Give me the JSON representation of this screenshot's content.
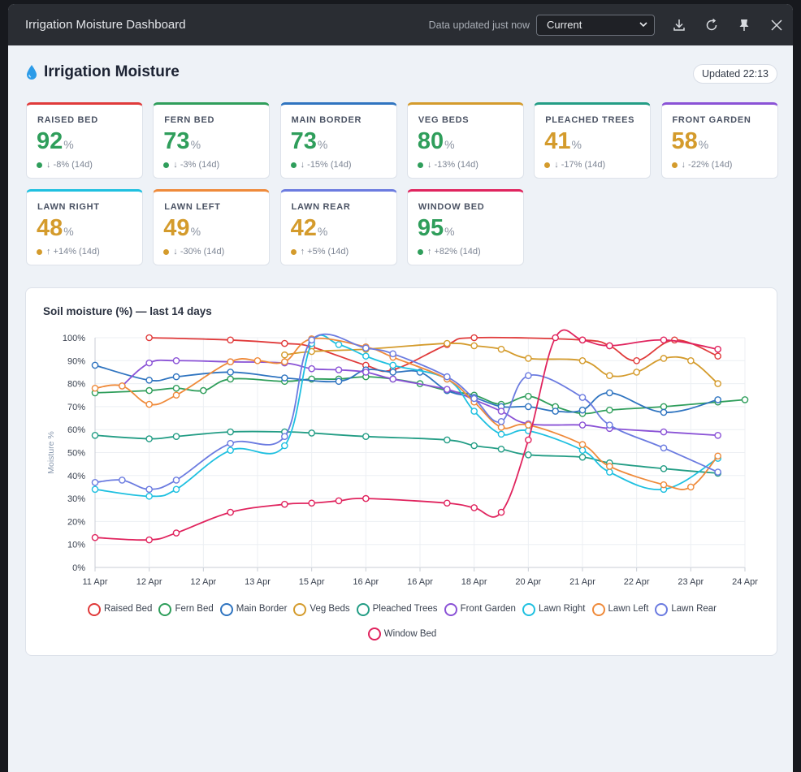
{
  "window": {
    "title": "Irrigation Moisture Dashboard",
    "status": "Data updated just now",
    "select_value": "Current",
    "icons": [
      "download-icon",
      "refresh-icon",
      "pin-icon",
      "close-icon"
    ]
  },
  "header": {
    "title": "Irrigation Moisture",
    "updated": "Updated 22:13"
  },
  "cards": [
    {
      "name": "RAISED BED",
      "value": "92",
      "unit": "%",
      "trend": "↓ -8% (14d)",
      "color": "#e03a3a",
      "status": "#2f9e5b"
    },
    {
      "name": "FERN BED",
      "value": "73",
      "unit": "%",
      "trend": "↓ -3% (14d)",
      "color": "#2f9e5b",
      "status": "#2f9e5b"
    },
    {
      "name": "MAIN BORDER",
      "value": "73",
      "unit": "%",
      "trend": "↓ -15% (14d)",
      "color": "#2f74c0",
      "status": "#2f9e5b"
    },
    {
      "name": "VEG BEDS",
      "value": "80",
      "unit": "%",
      "trend": "↓ -13% (14d)",
      "color": "#d49b2c",
      "status": "#2f9e5b"
    },
    {
      "name": "PLEACHED TREES",
      "value": "41",
      "unit": "%",
      "trend": "↓ -17% (14d)",
      "color": "#239d85",
      "status": "#d49b2c"
    },
    {
      "name": "FRONT GARDEN",
      "value": "58",
      "unit": "%",
      "trend": "↓ -22% (14d)",
      "color": "#8a52d6",
      "status": "#d49b2c"
    },
    {
      "name": "LAWN RIGHT",
      "value": "48",
      "unit": "%",
      "trend": "↑ +14% (14d)",
      "color": "#1fc0e0",
      "status": "#d49b2c"
    },
    {
      "name": "LAWN LEFT",
      "value": "49",
      "unit": "%",
      "trend": "↓ -30% (14d)",
      "color": "#ef8a3a",
      "status": "#d49b2c"
    },
    {
      "name": "LAWN REAR",
      "value": "42",
      "unit": "%",
      "trend": "↑ +5% (14d)",
      "color": "#6b7be0",
      "status": "#d49b2c"
    },
    {
      "name": "WINDOW BED",
      "value": "95",
      "unit": "%",
      "trend": "↑ +82% (14d)",
      "color": "#e0245e",
      "status": "#2f9e5b"
    }
  ],
  "chart_data": {
    "type": "line",
    "title": "Soil moisture (%) — last 14 days",
    "ylabel": "Moisture %",
    "xlabel": "",
    "ylim": [
      0,
      100
    ],
    "yticks": [
      "0%",
      "10%",
      "20%",
      "30%",
      "40%",
      "50%",
      "60%",
      "70%",
      "80%",
      "90%",
      "100%"
    ],
    "xlim": [
      0,
      12
    ],
    "xticks": [
      {
        "x": 0,
        "label": "11 Apr"
      },
      {
        "x": 1,
        "label": "12 Apr"
      },
      {
        "x": 2,
        "label": "12 Apr"
      },
      {
        "x": 3,
        "label": "13 Apr"
      },
      {
        "x": 4,
        "label": "15 Apr"
      },
      {
        "x": 5,
        "label": "16 Apr"
      },
      {
        "x": 6,
        "label": "16 Apr"
      },
      {
        "x": 7,
        "label": "18 Apr"
      },
      {
        "x": 8,
        "label": "20 Apr"
      },
      {
        "x": 9,
        "label": "21 Apr"
      },
      {
        "x": 10,
        "label": "22 Apr"
      },
      {
        "x": 11,
        "label": "23 Apr"
      },
      {
        "x": 12,
        "label": "24 Apr"
      }
    ],
    "grid": true,
    "legend": "bottom",
    "series": [
      {
        "name": "Raised Bed",
        "color": "#e03a3a",
        "points": [
          [
            1,
            100
          ],
          [
            2.5,
            99
          ],
          [
            3.5,
            97.5
          ],
          [
            4,
            96
          ],
          [
            5,
            88
          ],
          [
            5.5,
            86
          ],
          [
            6.5,
            97
          ],
          [
            7,
            100
          ],
          [
            9,
            99
          ],
          [
            9.5,
            96.5
          ],
          [
            10,
            90
          ],
          [
            10.7,
            99
          ],
          [
            11.5,
            92
          ]
        ]
      },
      {
        "name": "Fern Bed",
        "color": "#2f9e5b",
        "points": [
          [
            0,
            76
          ],
          [
            1,
            77
          ],
          [
            1.5,
            78
          ],
          [
            2,
            77
          ],
          [
            2.5,
            82
          ],
          [
            3.5,
            81
          ],
          [
            4,
            82
          ],
          [
            4.5,
            82
          ],
          [
            5,
            83
          ],
          [
            5.5,
            82
          ],
          [
            6,
            80
          ],
          [
            6.5,
            77
          ],
          [
            7,
            75
          ],
          [
            7.5,
            71
          ],
          [
            8,
            74.5
          ],
          [
            8.5,
            70
          ],
          [
            9,
            67
          ],
          [
            9.5,
            68.5
          ],
          [
            10.5,
            70
          ],
          [
            11.5,
            72
          ],
          [
            12,
            73
          ]
        ]
      },
      {
        "name": "Main Border",
        "color": "#2f74c0",
        "points": [
          [
            0,
            88
          ],
          [
            1,
            81.5
          ],
          [
            1.5,
            83
          ],
          [
            2.5,
            85
          ],
          [
            3.5,
            82.5
          ],
          [
            4.5,
            81
          ],
          [
            5,
            86
          ],
          [
            5.5,
            85
          ],
          [
            6,
            85
          ],
          [
            6.5,
            77
          ],
          [
            7,
            74
          ],
          [
            7.5,
            70
          ],
          [
            8,
            70
          ],
          [
            8.5,
            68
          ],
          [
            9,
            68.5
          ],
          [
            9.5,
            76
          ],
          [
            10.5,
            67.5
          ],
          [
            11.5,
            73
          ]
        ]
      },
      {
        "name": "Veg Beds",
        "color": "#d49b2c",
        "points": [
          [
            3.5,
            92.5
          ],
          [
            4,
            94
          ],
          [
            5,
            95
          ],
          [
            6.5,
            97.5
          ],
          [
            7,
            96.5
          ],
          [
            7.5,
            95
          ],
          [
            8,
            91
          ],
          [
            9,
            90
          ],
          [
            9.5,
            83.5
          ],
          [
            10,
            85
          ],
          [
            10.5,
            91
          ],
          [
            11,
            90
          ],
          [
            11.5,
            80
          ]
        ]
      },
      {
        "name": "Pleached Trees",
        "color": "#239d85",
        "points": [
          [
            0,
            57.5
          ],
          [
            1,
            56
          ],
          [
            1.5,
            57
          ],
          [
            2.5,
            59
          ],
          [
            3.5,
            59
          ],
          [
            4,
            58.5
          ],
          [
            5,
            57
          ],
          [
            6.5,
            55.5
          ],
          [
            7,
            53
          ],
          [
            7.5,
            51.5
          ],
          [
            8,
            49
          ],
          [
            9,
            48
          ],
          [
            9.5,
            45.5
          ],
          [
            10.5,
            43
          ],
          [
            11.5,
            41
          ]
        ]
      },
      {
        "name": "Front Garden",
        "color": "#8a52d6",
        "points": [
          [
            0.5,
            79
          ],
          [
            1,
            89
          ],
          [
            1.5,
            90
          ],
          [
            2.5,
            89.5
          ],
          [
            3.5,
            89
          ],
          [
            4,
            86.5
          ],
          [
            4.5,
            86
          ],
          [
            5,
            85
          ],
          [
            5.5,
            82
          ],
          [
            6.5,
            77.5
          ],
          [
            7,
            73
          ],
          [
            7.5,
            68
          ],
          [
            8,
            62.5
          ],
          [
            9,
            62
          ],
          [
            9.5,
            60.5
          ],
          [
            10.5,
            59
          ],
          [
            11.5,
            57.5
          ]
        ]
      },
      {
        "name": "Lawn Right",
        "color": "#1fc0e0",
        "points": [
          [
            0,
            34
          ],
          [
            1,
            31
          ],
          [
            1.5,
            34
          ],
          [
            2.5,
            51
          ],
          [
            3.5,
            53
          ],
          [
            4,
            97.5
          ],
          [
            4.5,
            97
          ],
          [
            5,
            92
          ],
          [
            5.5,
            88
          ],
          [
            6.5,
            82
          ],
          [
            7,
            68
          ],
          [
            7.5,
            58
          ],
          [
            8,
            59.5
          ],
          [
            9,
            51
          ],
          [
            9.5,
            41.5
          ],
          [
            10.5,
            34
          ],
          [
            11.5,
            47.5
          ]
        ]
      },
      {
        "name": "Lawn Left",
        "color": "#ef8a3a",
        "points": [
          [
            0,
            78
          ],
          [
            0.5,
            79
          ],
          [
            1,
            71
          ],
          [
            1.5,
            75
          ],
          [
            2.5,
            89.5
          ],
          [
            3,
            90
          ],
          [
            3.5,
            89.5
          ],
          [
            4,
            99.5
          ],
          [
            5,
            96
          ],
          [
            5.5,
            91.5
          ],
          [
            6.5,
            82
          ],
          [
            7,
            72
          ],
          [
            7.5,
            61
          ],
          [
            8,
            62
          ],
          [
            9,
            53.5
          ],
          [
            9.5,
            44
          ],
          [
            10.5,
            36
          ],
          [
            11,
            35
          ],
          [
            11.5,
            48.5
          ]
        ]
      },
      {
        "name": "Lawn Rear",
        "color": "#6b7be0",
        "points": [
          [
            0,
            37
          ],
          [
            0.5,
            38
          ],
          [
            1,
            34
          ],
          [
            1.5,
            38
          ],
          [
            2.5,
            54
          ],
          [
            3.5,
            57
          ],
          [
            4,
            99
          ],
          [
            5,
            95.5
          ],
          [
            5.5,
            93
          ],
          [
            6.5,
            83
          ],
          [
            7,
            73.5
          ],
          [
            7.5,
            63.5
          ],
          [
            8,
            83.5
          ],
          [
            9,
            74
          ],
          [
            9.5,
            62
          ],
          [
            10.5,
            52
          ],
          [
            11.5,
            41.5
          ]
        ]
      },
      {
        "name": "Window Bed",
        "color": "#e0245e",
        "points": [
          [
            0,
            13
          ],
          [
            1,
            12
          ],
          [
            1.5,
            15
          ],
          [
            2.5,
            24
          ],
          [
            3.5,
            27.5
          ],
          [
            4,
            28
          ],
          [
            4.5,
            29
          ],
          [
            5,
            30
          ],
          [
            6.5,
            28
          ],
          [
            7,
            26
          ],
          [
            7.5,
            24
          ],
          [
            8,
            55.5
          ],
          [
            8.5,
            100
          ],
          [
            9,
            99
          ],
          [
            9.5,
            96.5
          ],
          [
            10.5,
            99
          ],
          [
            11.5,
            95
          ]
        ]
      }
    ]
  }
}
